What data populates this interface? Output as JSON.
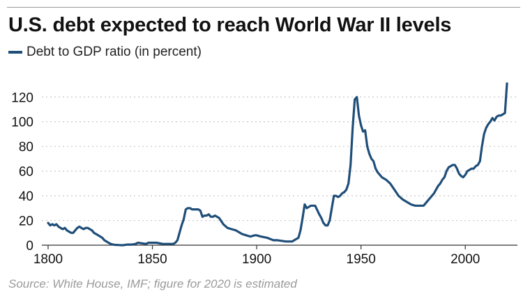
{
  "title": "U.S. debt expected to reach World War II levels",
  "legend": {
    "label": "Debt to GDP ratio (in percent)"
  },
  "source": "Source: White House, IMF; figure for 2020 is estimated",
  "colors": {
    "line": "#1f4e79",
    "grid": "#c8c8c8",
    "axis": "#333333",
    "text": "#111111",
    "source": "#9a9a9a"
  },
  "chart_data": {
    "type": "line",
    "title": "U.S. debt expected to reach World War II levels",
    "xlabel": "",
    "ylabel": "",
    "xlim": [
      1797,
      2025
    ],
    "ylim": [
      0,
      132
    ],
    "xticks": [
      1800,
      1850,
      1900,
      1950,
      2000
    ],
    "yticks": [
      0,
      20,
      40,
      60,
      80,
      100,
      120
    ],
    "grid": "horizontal-dotted",
    "legend_position": "top-left",
    "series": [
      {
        "name": "Debt to GDP ratio (in percent)",
        "x": [
          1800,
          1801,
          1802,
          1803,
          1804,
          1805,
          1806,
          1807,
          1808,
          1809,
          1810,
          1811,
          1812,
          1813,
          1814,
          1815,
          1816,
          1817,
          1818,
          1819,
          1820,
          1821,
          1822,
          1823,
          1824,
          1825,
          1826,
          1827,
          1828,
          1829,
          1830,
          1831,
          1832,
          1833,
          1834,
          1835,
          1836,
          1838,
          1840,
          1842,
          1843,
          1845,
          1847,
          1848,
          1850,
          1852,
          1855,
          1857,
          1860,
          1861,
          1862,
          1863,
          1864,
          1865,
          1866,
          1867,
          1868,
          1869,
          1870,
          1871,
          1872,
          1873,
          1874,
          1875,
          1876,
          1877,
          1878,
          1879,
          1880,
          1882,
          1884,
          1886,
          1888,
          1890,
          1892,
          1893,
          1895,
          1897,
          1899,
          1900,
          1902,
          1905,
          1908,
          1910,
          1912,
          1914,
          1915,
          1916,
          1917,
          1918,
          1919,
          1920,
          1921,
          1922,
          1923,
          1924,
          1926,
          1928,
          1930,
          1931,
          1932,
          1933,
          1934,
          1935,
          1936,
          1937,
          1938,
          1939,
          1940,
          1941,
          1942,
          1943,
          1944,
          1945,
          1946,
          1947,
          1948,
          1949,
          1950,
          1951,
          1952,
          1953,
          1954,
          1955,
          1956,
          1957,
          1958,
          1960,
          1962,
          1964,
          1966,
          1968,
          1970,
          1972,
          1974,
          1976,
          1978,
          1980,
          1981,
          1982,
          1983,
          1984,
          1985,
          1986,
          1987,
          1988,
          1989,
          1990,
          1991,
          1992,
          1993,
          1994,
          1995,
          1996,
          1997,
          1998,
          1999,
          2000,
          2001,
          2002,
          2003,
          2004,
          2005,
          2006,
          2007,
          2008,
          2009,
          2010,
          2011,
          2012,
          2013,
          2014,
          2015,
          2016,
          2017,
          2018,
          2019,
          2020
        ],
        "values": [
          18,
          16,
          17,
          16,
          17,
          15,
          14,
          13,
          14,
          12,
          11,
          10,
          10,
          12,
          14,
          15,
          14,
          13,
          14,
          14,
          13,
          12,
          10,
          9,
          8,
          7,
          6,
          4,
          3,
          2,
          1,
          0.6,
          0.3,
          0.2,
          0.1,
          0,
          0,
          0.5,
          0.5,
          1,
          2,
          1.5,
          1,
          2,
          2,
          2,
          1,
          1,
          1,
          2,
          4,
          10,
          16,
          21,
          29,
          30,
          30,
          29,
          29,
          29,
          29,
          28,
          23,
          24,
          24,
          25,
          23,
          23,
          24,
          22,
          17,
          14,
          13,
          12,
          10,
          9,
          8,
          7,
          8,
          8,
          7,
          6,
          4,
          4,
          3.5,
          3,
          3,
          3,
          3,
          4,
          5,
          6,
          12,
          22,
          33,
          30,
          32,
          32,
          25,
          22,
          18,
          16,
          16,
          20,
          30,
          40,
          40,
          39,
          40,
          42,
          43,
          45,
          50,
          65,
          95,
          118,
          120,
          105,
          97,
          92,
          93,
          80,
          74,
          70,
          68,
          62,
          59,
          55,
          53,
          50,
          45,
          40,
          37,
          35,
          33,
          32,
          32,
          32,
          34,
          36,
          38,
          40,
          42,
          45,
          48,
          50,
          53,
          55,
          60,
          63,
          64,
          65,
          65,
          62,
          58,
          56,
          55,
          57,
          60,
          61,
          62,
          62,
          64,
          65,
          68,
          80,
          90,
          95,
          98,
          100,
          103,
          101,
          104,
          105,
          105,
          106,
          107,
          131
        ]
      }
    ]
  }
}
